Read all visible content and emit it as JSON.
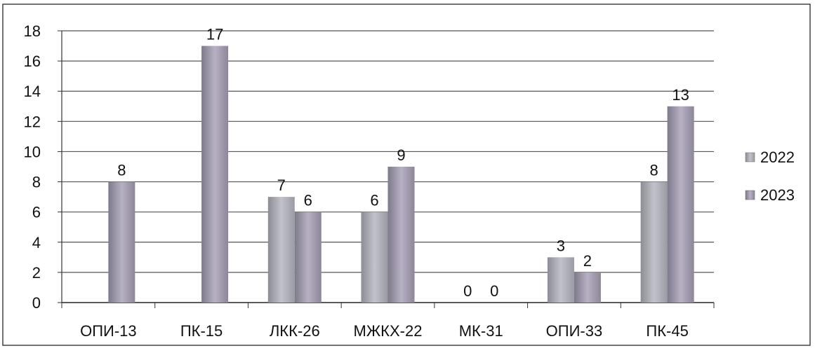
{
  "chart_data": {
    "type": "bar",
    "categories": [
      "ОПИ-13",
      "ПК-15",
      "ЛКК-26",
      "МЖКХ-22",
      "МК-31",
      "ОПИ-33",
      "ПК-45"
    ],
    "series": [
      {
        "name": "2022",
        "values": [
          null,
          null,
          7,
          6,
          0,
          3,
          8
        ],
        "color": "#a9a9b1"
      },
      {
        "name": "2023",
        "values": [
          8,
          17,
          6,
          9,
          0,
          2,
          13
        ],
        "color": "#9b93a8"
      }
    ],
    "data_labels": [
      [
        null,
        null,
        "7",
        "6",
        "0",
        "3",
        "8"
      ],
      [
        "8",
        "17",
        "6",
        "9",
        "0",
        "2",
        "13"
      ]
    ],
    "yticks": [
      "0",
      "2",
      "4",
      "6",
      "8",
      "10",
      "12",
      "14",
      "16",
      "18"
    ],
    "ylim": [
      0,
      18
    ],
    "grid": true,
    "legend_position": "right"
  }
}
